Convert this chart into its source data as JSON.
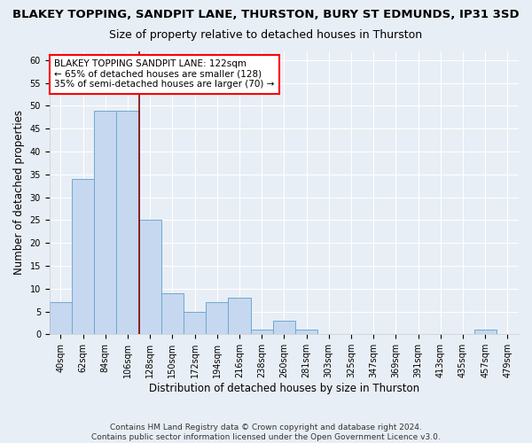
{
  "title_line1": "BLAKEY TOPPING, SANDPIT LANE, THURSTON, BURY ST EDMUNDS, IP31 3SD",
  "title_line2": "Size of property relative to detached houses in Thurston",
  "xlabel": "Distribution of detached houses by size in Thurston",
  "ylabel": "Number of detached properties",
  "footnote": "Contains HM Land Registry data © Crown copyright and database right 2024.\nContains public sector information licensed under the Open Government Licence v3.0.",
  "categories": [
    "40sqm",
    "62sqm",
    "84sqm",
    "106sqm",
    "128sqm",
    "150sqm",
    "172sqm",
    "194sqm",
    "216sqm",
    "238sqm",
    "260sqm",
    "281sqm",
    "303sqm",
    "325sqm",
    "347sqm",
    "369sqm",
    "391sqm",
    "413sqm",
    "435sqm",
    "457sqm",
    "479sqm"
  ],
  "values": [
    7,
    34,
    49,
    49,
    25,
    9,
    5,
    7,
    8,
    1,
    3,
    1,
    0,
    0,
    0,
    0,
    0,
    0,
    0,
    1,
    0
  ],
  "bar_color": "#c5d8ef",
  "bar_edge_color": "#6fa8d0",
  "bar_edge_width": 0.7,
  "red_line_index": 3.5,
  "annotation_text": "BLAKEY TOPPING SANDPIT LANE: 122sqm\n← 65% of detached houses are smaller (128)\n35% of semi-detached houses are larger (70) →",
  "annotation_box_color": "white",
  "annotation_box_edge_color": "red",
  "ylim": [
    0,
    62
  ],
  "yticks": [
    0,
    5,
    10,
    15,
    20,
    25,
    30,
    35,
    40,
    45,
    50,
    55,
    60
  ],
  "bg_color": "#e8eef5",
  "plot_bg_color": "#e8eef5",
  "grid_color": "white",
  "title_fontsize": 9.5,
  "subtitle_fontsize": 9,
  "axis_label_fontsize": 8.5,
  "tick_fontsize": 7,
  "footnote_fontsize": 6.5
}
